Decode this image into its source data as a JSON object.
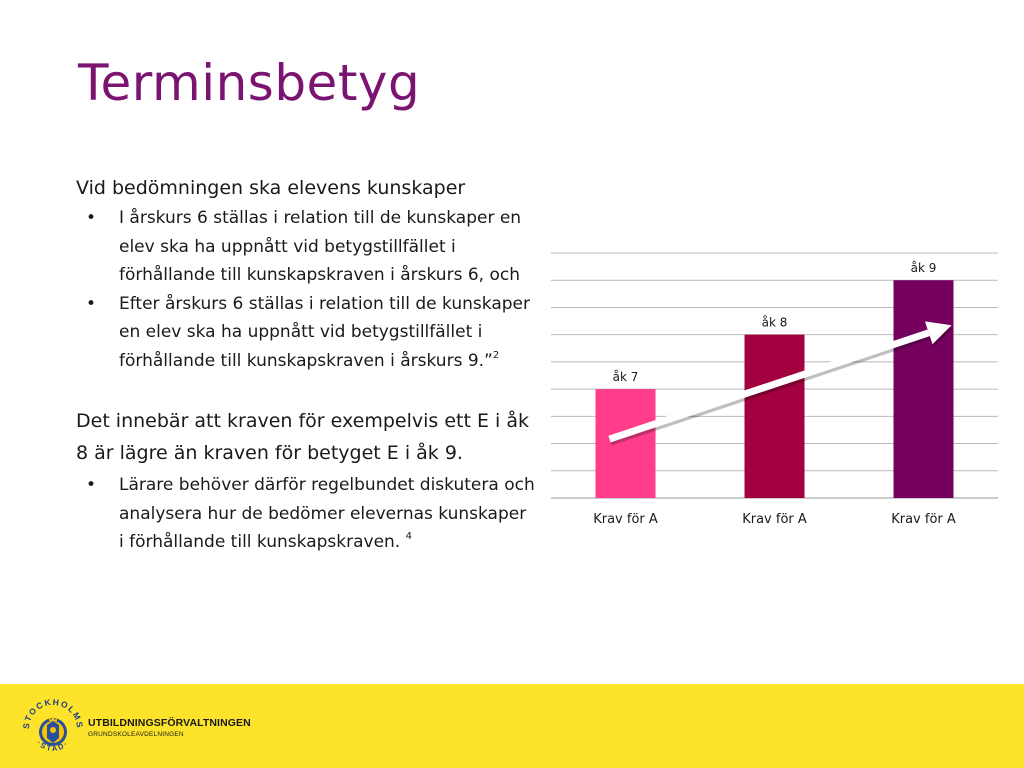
{
  "slide": {
    "title": "Terminsbetyg",
    "intro": "Vid bedömningen ska elevens kunskaper",
    "bullets_1": [
      {
        "text": "I årskurs 6 ställas i relation till de kunskaper en elev ska ha uppnått vid betygstillfället i förhållande till kunskapskraven i årskurs 6, och",
        "sup": ""
      },
      {
        "text": "Efter årskurs 6 ställas i relation till de kunskaper en elev ska ha uppnått vid betygstillfället i förhållande till kunskapskraven i årskurs 9.”",
        "sup": "2"
      }
    ],
    "paragraph_2": "Det innebär att kraven för exempelvis ett E i åk 8 är lägre än kraven för betyget E i åk 9.",
    "bullets_2": [
      {
        "text": "Lärare behöver därför regelbundet diskutera och analysera hur de bedömer elevernas kunskaper i förhållande till kunskapskraven. ",
        "sup": "4"
      }
    ],
    "bullet_char": "•"
  },
  "chart_data": {
    "type": "bar",
    "categories": [
      "Krav för A",
      "Krav för A",
      "Krav för A"
    ],
    "values": [
      4,
      6,
      8
    ],
    "data_labels": [
      "åk 7",
      "åk 8",
      "åk 9"
    ],
    "colors": [
      "#ff3d8b",
      "#a3003f",
      "#75005e"
    ],
    "ylim": [
      0,
      9
    ],
    "gridline_count": 9,
    "grid": true,
    "arrow": {
      "from": "åk 7",
      "to": "åk 9",
      "color": "#ffffff"
    }
  },
  "footer": {
    "department": "UTBILDNINGSFÖRVALTNINGEN",
    "subdepartment": "GRUNDSKOLEAVDELNINGEN",
    "seal_text": "STOCKHOLMS STAD",
    "background": "#fde32a"
  }
}
